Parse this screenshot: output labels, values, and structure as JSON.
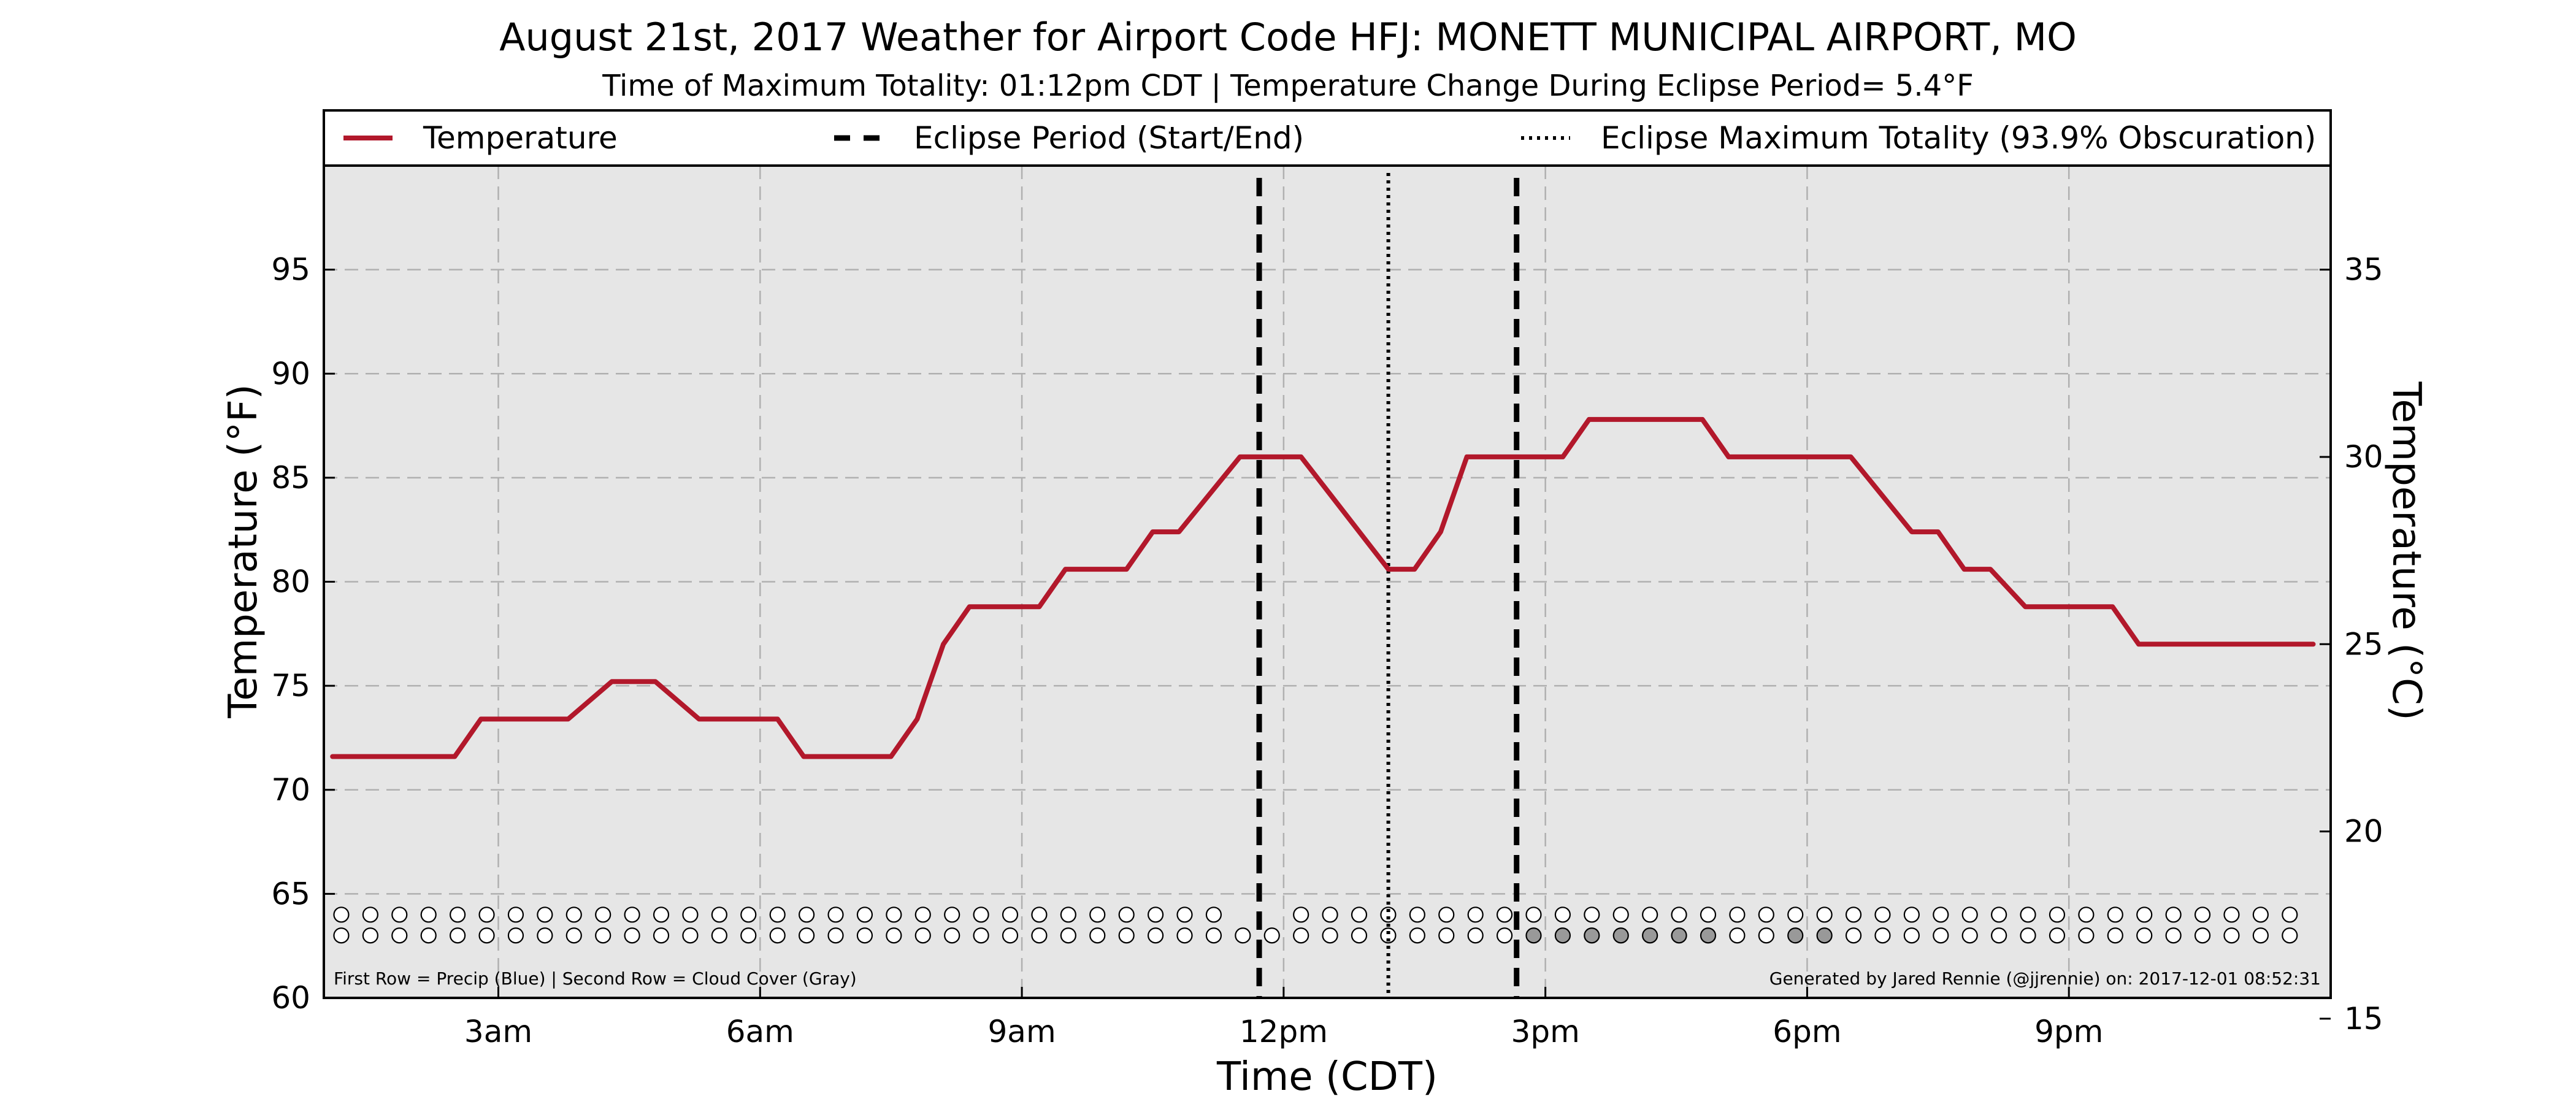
{
  "chart_data": {
    "type": "line",
    "title": "August 21st, 2017 Weather for Airport Code HFJ: MONETT MUNICIPAL AIRPORT, MO",
    "subtitle": "Time of Maximum Totality: 01:12pm CDT | Temperature Change During Eclipse Period= 5.4°F",
    "xlabel": "Time (CDT)",
    "ylabel": "Temperature (°F)",
    "ylabel_right": "Temperature (°C)",
    "xlim": [
      1.0,
      24.0
    ],
    "ylim": [
      60,
      100
    ],
    "ylim_right": [
      15.56,
      37.78
    ],
    "x_ticks": [
      {
        "hour": 3,
        "label": "3am"
      },
      {
        "hour": 6,
        "label": "6am"
      },
      {
        "hour": 9,
        "label": "9am"
      },
      {
        "hour": 12,
        "label": "12pm"
      },
      {
        "hour": 15,
        "label": "3pm"
      },
      {
        "hour": 18,
        "label": "6pm"
      },
      {
        "hour": 21,
        "label": "9pm"
      }
    ],
    "y_ticks": [
      60,
      65,
      70,
      75,
      80,
      85,
      90,
      95
    ],
    "y_ticks_right": [
      15,
      20,
      25,
      30,
      35
    ],
    "grid": true,
    "legend_position": "top",
    "legend": [
      {
        "label": "Temperature",
        "style": "solid"
      },
      {
        "label": "Eclipse Period (Start/End)",
        "style": "dashed"
      },
      {
        "label": "Eclipse Maximum Totality (93.9% Obscuration)",
        "style": "dotted"
      }
    ],
    "series": [
      {
        "name": "Temperature",
        "color": "#b2182b",
        "points": [
          [
            1.1,
            71.6
          ],
          [
            2.5,
            71.6
          ],
          [
            2.8,
            73.4
          ],
          [
            3.8,
            73.4
          ],
          [
            4.3,
            75.2
          ],
          [
            4.8,
            75.2
          ],
          [
            5.3,
            73.4
          ],
          [
            6.2,
            73.4
          ],
          [
            6.5,
            71.6
          ],
          [
            7.5,
            71.6
          ],
          [
            7.8,
            73.4
          ],
          [
            8.1,
            77.0
          ],
          [
            8.4,
            78.8
          ],
          [
            9.2,
            78.8
          ],
          [
            9.5,
            80.6
          ],
          [
            10.2,
            80.6
          ],
          [
            10.5,
            82.4
          ],
          [
            10.8,
            82.4
          ],
          [
            11.5,
            86.0
          ],
          [
            12.2,
            86.0
          ],
          [
            13.2,
            80.6
          ],
          [
            13.5,
            80.6
          ],
          [
            13.8,
            82.4
          ],
          [
            14.1,
            86.0
          ],
          [
            15.2,
            86.0
          ],
          [
            15.5,
            87.8
          ],
          [
            16.8,
            87.8
          ],
          [
            17.1,
            86.0
          ],
          [
            18.5,
            86.0
          ],
          [
            19.2,
            82.4
          ],
          [
            19.5,
            82.4
          ],
          [
            19.8,
            80.6
          ],
          [
            20.1,
            80.6
          ],
          [
            20.5,
            78.8
          ],
          [
            21.5,
            78.8
          ],
          [
            21.8,
            77.0
          ],
          [
            23.8,
            77.0
          ]
        ]
      }
    ],
    "eclipse_start_hour": 11.72,
    "eclipse_end_hour": 14.67,
    "eclipse_max_hour": 13.2,
    "obs_rows": {
      "precip_row_temp": 64.0,
      "cloud_row_temp": 63.0,
      "start_hour": 1.2,
      "end_hour": 23.8,
      "step_hour": 0.3333,
      "precip_gaps_near": [
        10.0,
        11.55,
        11.95
      ],
      "cloud_gray_hours": [
        14.88,
        15.22,
        15.55,
        15.88,
        16.22,
        16.55,
        16.88,
        17.88,
        18.22
      ],
      "empty_color": "#ffffff",
      "gray_color": "#999999"
    },
    "footnote_left": "First Row = Precip (Blue) | Second Row = Cloud Cover (Gray)",
    "footnote_right": "Generated by Jared Rennie (@jjrennie) on: 2017-12-01 08:52:31",
    "colors": {
      "plot_background": "#e6e6e6",
      "temperature_line": "#b2182b",
      "grid": "#b0b0b0"
    }
  }
}
